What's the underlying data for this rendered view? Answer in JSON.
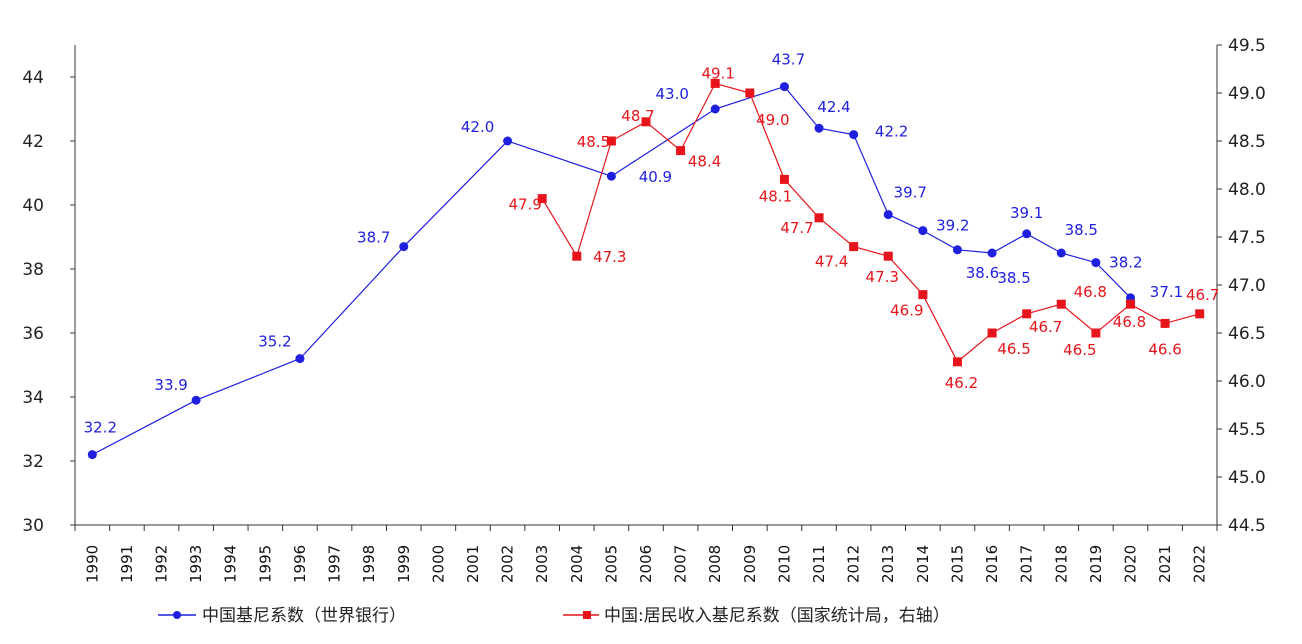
{
  "chart_data": {
    "type": "line",
    "categories": [
      "1990",
      "1991",
      "1992",
      "1993",
      "1994",
      "1995",
      "1996",
      "1997",
      "1998",
      "1999",
      "2000",
      "2001",
      "2002",
      "2003",
      "2004",
      "2005",
      "2006",
      "2007",
      "2008",
      "2009",
      "2010",
      "2011",
      "2012",
      "2013",
      "2014",
      "2015",
      "2016",
      "2017",
      "2018",
      "2019",
      "2020",
      "2021",
      "2022"
    ],
    "y_left": {
      "min": 30,
      "max": 45,
      "ticks": [
        30,
        32,
        34,
        36,
        38,
        40,
        42,
        44
      ]
    },
    "y_right": {
      "min": 44.5,
      "max": 49.5,
      "ticks": [
        "44.5",
        "45.0",
        "45.5",
        "46.0",
        "46.5",
        "47.0",
        "47.5",
        "48.0",
        "48.5",
        "49.0",
        "49.5"
      ]
    },
    "grid": false,
    "legend_position": "bottom",
    "series": [
      {
        "name": "中国基尼系数（世界银行）",
        "axis": "left",
        "color": "#1f1fe0",
        "marker": "circle",
        "points": [
          [
            "1990",
            32.2
          ],
          [
            "1993",
            33.9
          ],
          [
            "1996",
            35.2
          ],
          [
            "1999",
            38.7
          ],
          [
            "2002",
            42.0
          ],
          [
            "2005",
            40.9
          ],
          [
            "2008",
            43.0
          ],
          [
            "2010",
            43.7
          ],
          [
            "2011",
            42.4
          ],
          [
            "2012",
            42.2
          ],
          [
            "2013",
            39.7
          ],
          [
            "2014",
            39.2
          ],
          [
            "2015",
            38.6
          ],
          [
            "2016",
            38.5
          ],
          [
            "2017",
            39.1
          ],
          [
            "2018",
            38.5
          ],
          [
            "2019",
            38.2
          ],
          [
            "2020",
            37.1
          ]
        ],
        "labels": [
          "32.2",
          "33.9",
          "35.2",
          "38.7",
          "42.0",
          "40.9",
          "43.0",
          "43.7",
          "42.4",
          "42.2",
          "39.7",
          "39.2",
          "38.6",
          "38.5",
          "39.1",
          "38.5",
          "38.2",
          "37.1"
        ]
      },
      {
        "name": "中国:居民收入基尼系数（国家统计局，右轴）",
        "axis": "right",
        "color": "#e8141b",
        "marker": "square",
        "points": [
          [
            "2003",
            47.9
          ],
          [
            "2004",
            47.3
          ],
          [
            "2005",
            48.5
          ],
          [
            "2006",
            48.7
          ],
          [
            "2007",
            48.4
          ],
          [
            "2008",
            49.1
          ],
          [
            "2009",
            49.0
          ],
          [
            "2010",
            48.1
          ],
          [
            "2011",
            47.7
          ],
          [
            "2012",
            47.4
          ],
          [
            "2013",
            47.3
          ],
          [
            "2014",
            46.9
          ],
          [
            "2015",
            46.2
          ],
          [
            "2016",
            46.5
          ],
          [
            "2017",
            46.7
          ],
          [
            "2018",
            46.8
          ],
          [
            "2019",
            46.5
          ],
          [
            "2020",
            46.8
          ],
          [
            "2021",
            46.6
          ],
          [
            "2022",
            46.7
          ]
        ],
        "labels": [
          "47.9",
          "47.3",
          "48.5",
          "48.7",
          "48.4",
          "49.1",
          "49.0",
          "48.1",
          "47.7",
          "47.4",
          "47.3",
          "46.9",
          "46.2",
          "46.5",
          "46.7",
          "46.8",
          "46.5",
          "46.8",
          "46.6",
          "46.7"
        ]
      }
    ]
  }
}
